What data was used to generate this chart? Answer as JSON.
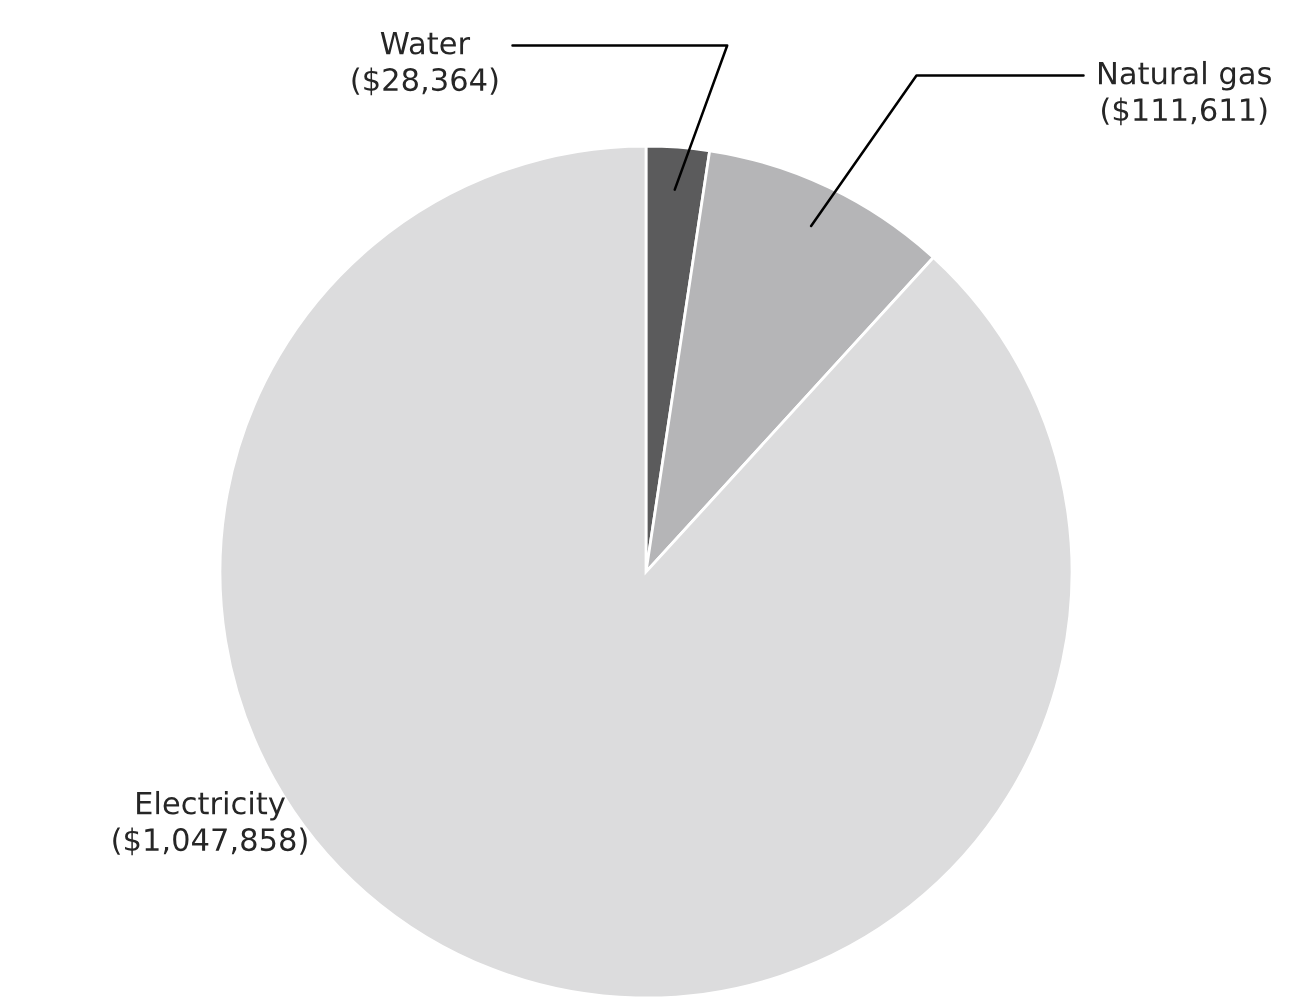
{
  "chart_data": {
    "type": "pie",
    "categories": [
      "Water",
      "Natural gas",
      "Electricity"
    ],
    "values": [
      28364,
      111611,
      1047858
    ],
    "value_labels": [
      "($28,364)",
      "($111,611)",
      "($1,047,858)"
    ],
    "colors": [
      "#5b5b5c",
      "#b5b5b7",
      "#dcdcdd"
    ],
    "legend": false
  }
}
